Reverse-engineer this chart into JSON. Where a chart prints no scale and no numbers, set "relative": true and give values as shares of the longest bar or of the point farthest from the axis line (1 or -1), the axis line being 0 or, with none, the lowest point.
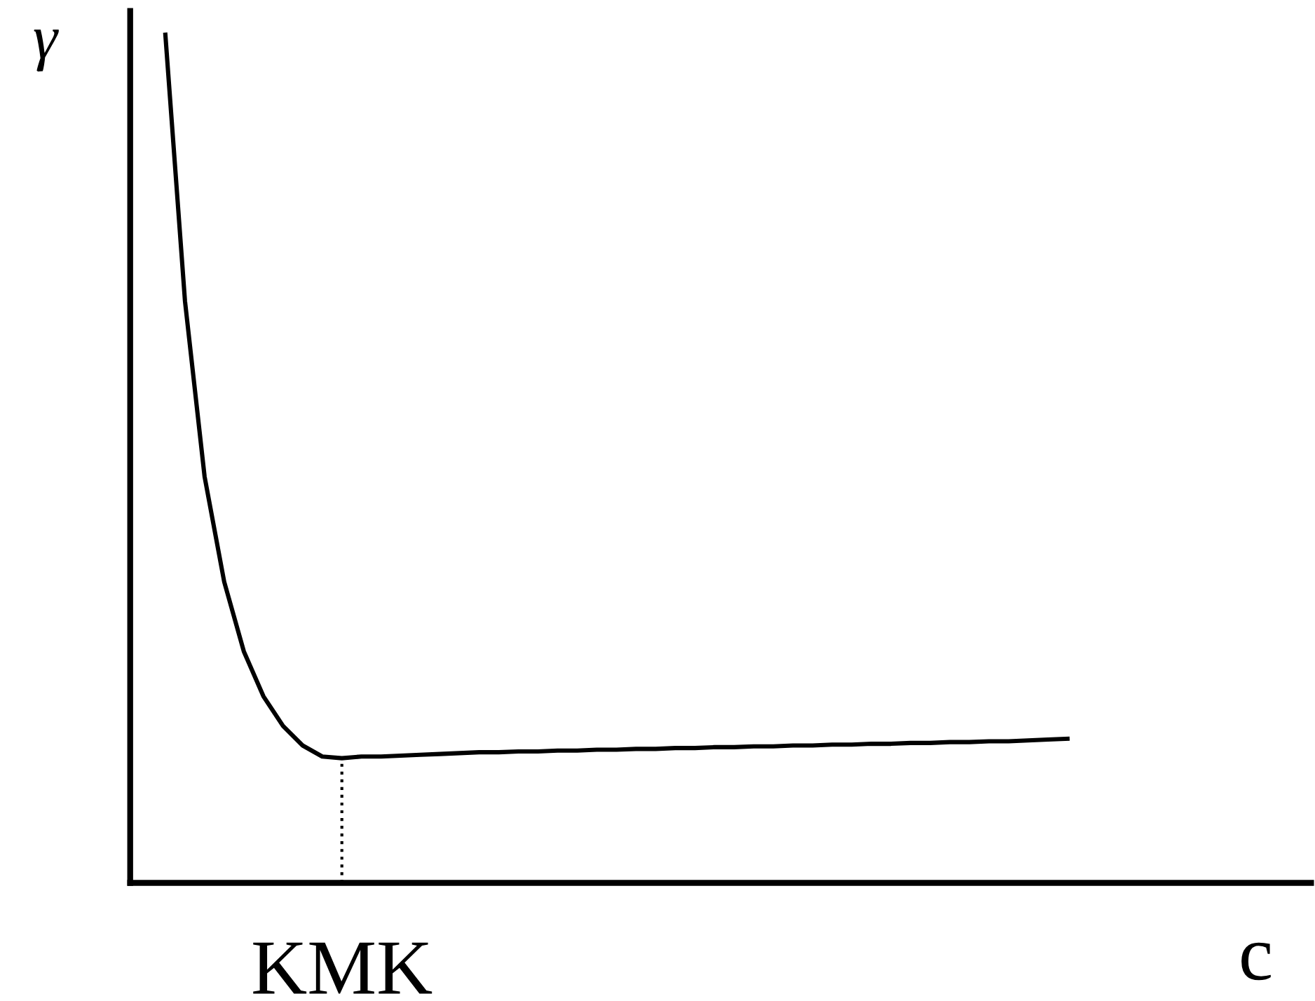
{
  "chart_data": {
    "type": "line",
    "relative": true,
    "ylabel": "γ",
    "xlabel": "c",
    "categories": [
      null,
      null,
      null,
      null,
      null,
      null,
      null,
      null,
      null,
      null,
      null,
      null,
      null,
      null,
      null,
      null,
      null,
      null,
      null,
      null,
      null,
      null,
      null,
      null,
      null,
      null,
      null,
      null,
      null,
      null,
      null,
      null,
      null,
      null,
      null,
      null,
      null,
      null,
      null,
      null,
      null,
      null,
      null,
      null,
      null,
      null,
      null
    ],
    "series": [
      {
        "color": "#000000",
        "values": [
          1,
          0.686,
          0.479,
          0.355,
          0.273,
          0.22,
          0.185,
          0.162,
          0.149,
          0.147,
          0.149,
          0.149,
          0.15,
          0.151,
          0.152,
          0.153,
          0.154,
          0.154,
          0.155,
          0.155,
          0.156,
          0.156,
          0.157,
          0.157,
          0.158,
          0.158,
          0.159,
          0.159,
          0.16,
          0.16,
          0.161,
          0.161,
          0.162,
          0.162,
          0.163,
          0.163,
          0.164,
          0.164,
          0.165,
          0.165,
          0.166,
          0.166,
          0.167,
          0.167,
          0.168,
          0.169,
          0.17
        ]
      }
    ],
    "annotations": [
      "KMK"
    ],
    "grid": false,
    "legend": false,
    "marker": "none",
    "line_style": "solid"
  }
}
